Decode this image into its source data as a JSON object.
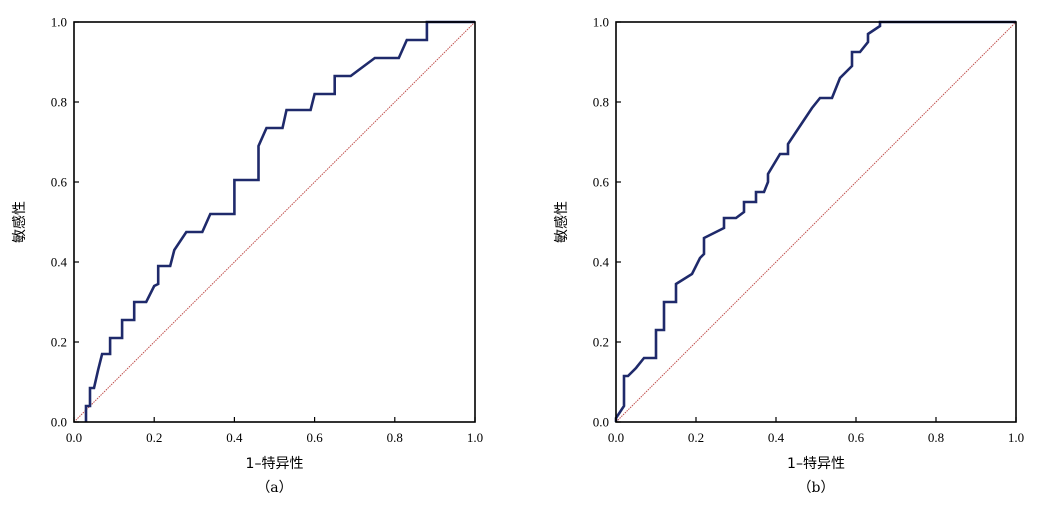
{
  "chart_data": [
    {
      "type": "line",
      "panel_label": "（a）",
      "xlabel": "1–特异性",
      "ylabel": "敏感性",
      "xlim": [
        0,
        1
      ],
      "ylim": [
        0,
        1
      ],
      "xticks": [
        "0.0",
        "0.2",
        "0.4",
        "0.6",
        "0.8",
        "1.0"
      ],
      "yticks": [
        "0.0",
        "0.2",
        "0.4",
        "0.6",
        "0.8",
        "1.0"
      ],
      "grid": false,
      "colors": {
        "roc": "#1f2a6b",
        "reference": "#c0504d"
      },
      "series": [
        {
          "kind": "roc",
          "x": [
            0.03,
            0.03,
            0.04,
            0.04,
            0.05,
            0.06,
            0.07,
            0.07,
            0.09,
            0.09,
            0.12,
            0.12,
            0.15,
            0.15,
            0.18,
            0.2,
            0.21,
            0.21,
            0.24,
            0.25,
            0.28,
            0.32,
            0.34,
            0.4,
            0.4,
            0.4,
            0.46,
            0.46,
            0.48,
            0.52,
            0.53,
            0.59,
            0.6,
            0.65,
            0.65,
            0.69,
            0.71,
            0.75,
            0.81,
            0.83,
            0.88,
            0.88,
            1.0
          ],
          "y": [
            0.0,
            0.04,
            0.04,
            0.085,
            0.085,
            0.13,
            0.17,
            0.17,
            0.17,
            0.21,
            0.21,
            0.255,
            0.255,
            0.3,
            0.3,
            0.34,
            0.345,
            0.39,
            0.39,
            0.43,
            0.475,
            0.475,
            0.52,
            0.52,
            0.56,
            0.605,
            0.605,
            0.69,
            0.735,
            0.735,
            0.78,
            0.78,
            0.82,
            0.82,
            0.865,
            0.865,
            0.88,
            0.91,
            0.91,
            0.955,
            0.955,
            1.0,
            1.0
          ]
        },
        {
          "kind": "reference",
          "x": [
            0,
            1
          ],
          "y": [
            0,
            1
          ]
        }
      ]
    },
    {
      "type": "line",
      "panel_label": "（b）",
      "xlabel": "1–特异性",
      "ylabel": "敏感性",
      "xlim": [
        0,
        1
      ],
      "ylim": [
        0,
        1
      ],
      "xticks": [
        "0.0",
        "0.2",
        "0.4",
        "0.6",
        "0.8",
        "1.0"
      ],
      "yticks": [
        "0.0",
        "0.2",
        "0.4",
        "0.6",
        "0.8",
        "1.0"
      ],
      "grid": false,
      "colors": {
        "roc": "#1f2a6b",
        "reference": "#c0504d"
      },
      "series": [
        {
          "kind": "roc",
          "x": [
            0.0,
            0.0,
            0.02,
            0.02,
            0.03,
            0.05,
            0.05,
            0.07,
            0.1,
            0.1,
            0.12,
            0.12,
            0.15,
            0.15,
            0.19,
            0.19,
            0.21,
            0.22,
            0.22,
            0.27,
            0.27,
            0.3,
            0.32,
            0.32,
            0.35,
            0.35,
            0.37,
            0.38,
            0.38,
            0.41,
            0.43,
            0.43,
            0.46,
            0.46,
            0.49,
            0.49,
            0.51,
            0.54,
            0.56,
            0.59,
            0.59,
            0.61,
            0.63,
            0.63,
            0.66,
            0.66,
            1.0
          ],
          "y": [
            0.0,
            0.01,
            0.04,
            0.115,
            0.115,
            0.135,
            0.135,
            0.16,
            0.16,
            0.23,
            0.23,
            0.3,
            0.3,
            0.345,
            0.37,
            0.37,
            0.41,
            0.42,
            0.46,
            0.485,
            0.51,
            0.51,
            0.525,
            0.55,
            0.55,
            0.575,
            0.575,
            0.6,
            0.62,
            0.67,
            0.67,
            0.695,
            0.74,
            0.74,
            0.785,
            0.785,
            0.81,
            0.81,
            0.86,
            0.89,
            0.925,
            0.925,
            0.95,
            0.97,
            0.99,
            1.0,
            1.0
          ]
        },
        {
          "kind": "reference",
          "x": [
            0,
            1
          ],
          "y": [
            0,
            1
          ]
        }
      ]
    }
  ]
}
